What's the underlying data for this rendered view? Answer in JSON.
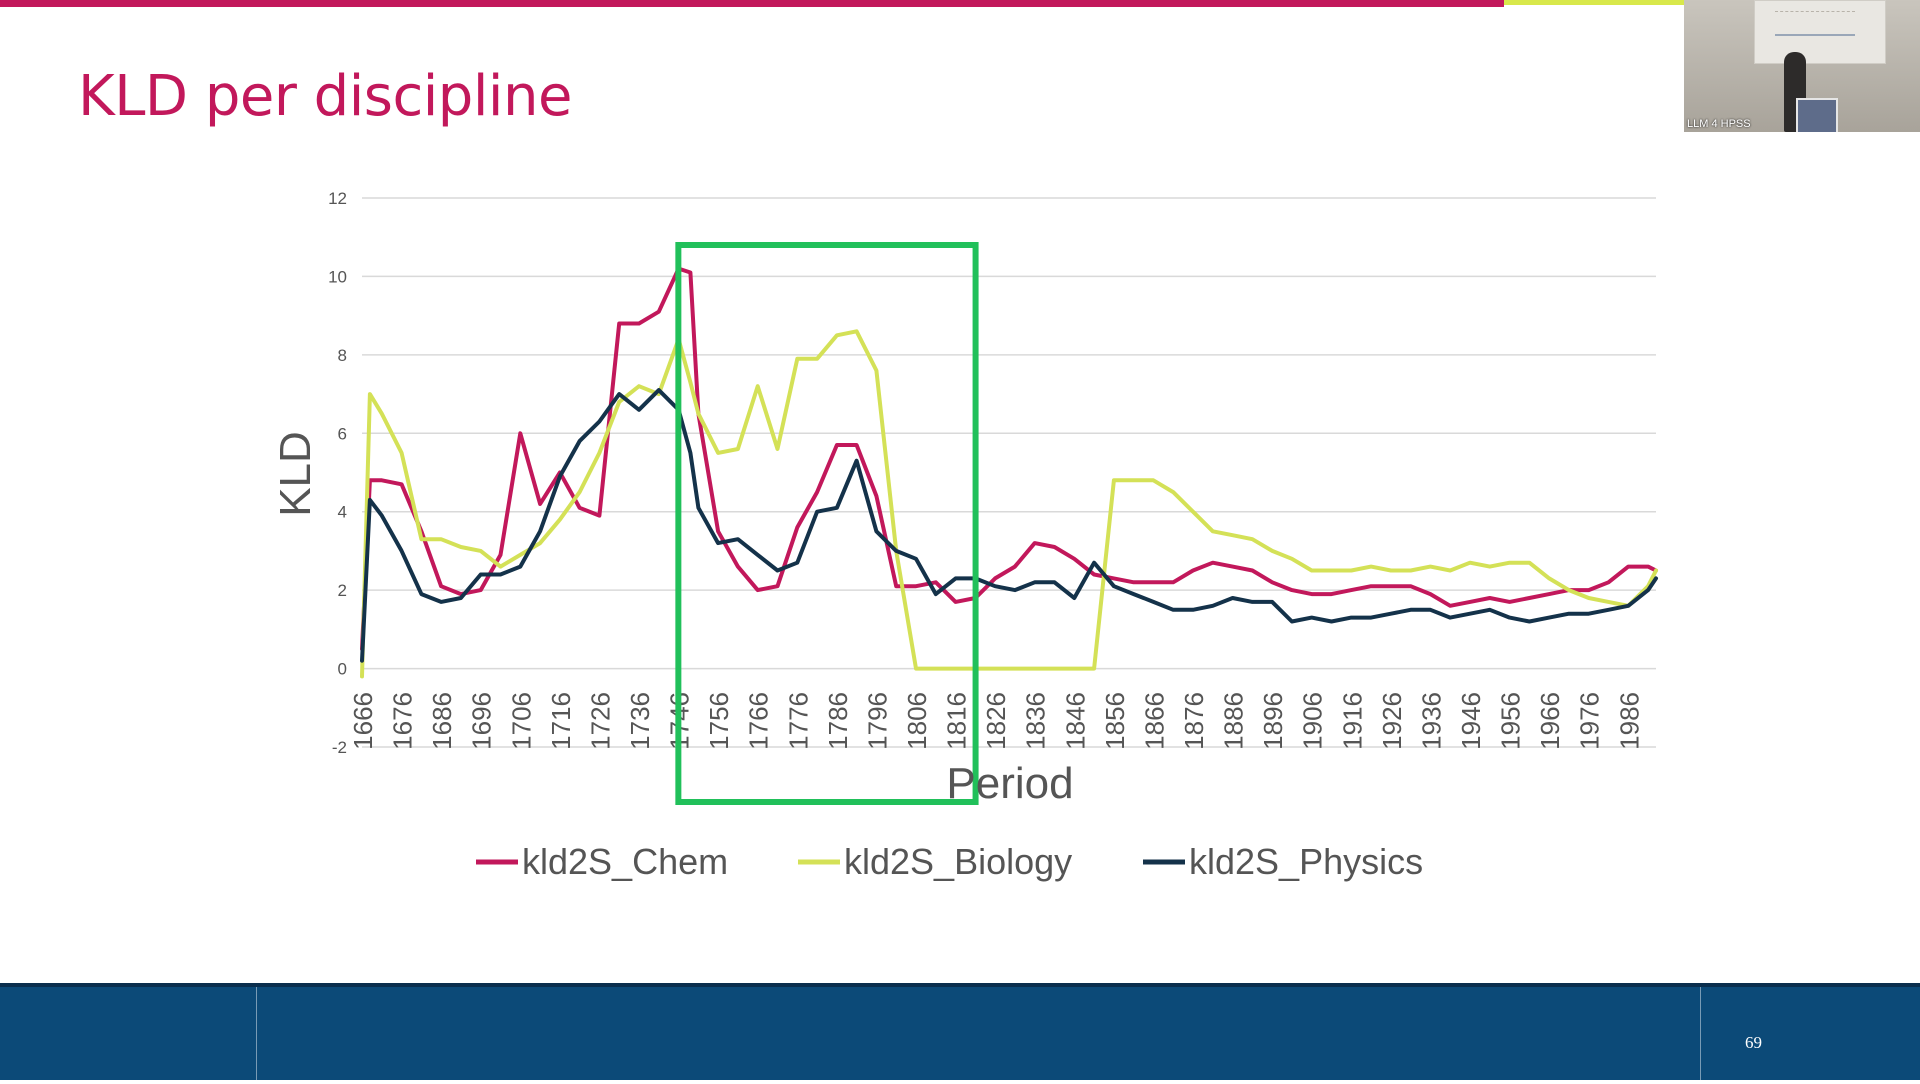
{
  "slide": {
    "title": "KLD per discipline",
    "page_number": "69",
    "accent_color": "#c2185b",
    "footer_color": "#0c4a78"
  },
  "video_thumbnail": {
    "label": "LLM 4 HPSS"
  },
  "chart_data": {
    "type": "line",
    "xlabel": "Period",
    "ylabel": "KLD",
    "ylim": [
      -2,
      12
    ],
    "yticks": [
      -2,
      0,
      2,
      4,
      6,
      8,
      10,
      12
    ],
    "grid": true,
    "legend_position": "bottom",
    "x": [
      1666,
      1668,
      1671,
      1676,
      1681,
      1686,
      1691,
      1696,
      1701,
      1706,
      1711,
      1716,
      1721,
      1726,
      1731,
      1736,
      1741,
      1746,
      1749,
      1751,
      1756,
      1761,
      1766,
      1771,
      1776,
      1781,
      1786,
      1791,
      1796,
      1801,
      1806,
      1811,
      1816,
      1821,
      1826,
      1831,
      1836,
      1841,
      1846,
      1851,
      1856,
      1861,
      1866,
      1871,
      1876,
      1881,
      1886,
      1891,
      1896,
      1901,
      1906,
      1911,
      1916,
      1921,
      1926,
      1931,
      1936,
      1941,
      1946,
      1951,
      1956,
      1961,
      1966,
      1971,
      1976,
      1981,
      1986,
      1991,
      1993
    ],
    "tick_labels": [
      "1666",
      "1676",
      "1686",
      "1696",
      "1706",
      "1716",
      "1726",
      "1736",
      "1746",
      "1756",
      "1766",
      "1776",
      "1786",
      "1796",
      "1806",
      "1816",
      "1826",
      "1836",
      "1846",
      "1856",
      "1866",
      "1876",
      "1886",
      "1896",
      "1906",
      "1916",
      "1926",
      "1936",
      "1946",
      "1956",
      "1966",
      "1976",
      "1986"
    ],
    "series": [
      {
        "name": "kld2S_Chem",
        "color": "#c2185b",
        "values": [
          0.5,
          4.8,
          4.8,
          4.7,
          3.5,
          2.1,
          1.9,
          2.0,
          2.9,
          6.0,
          4.2,
          5.0,
          4.1,
          3.9,
          8.8,
          8.8,
          9.1,
          10.2,
          10.1,
          6.5,
          3.5,
          2.6,
          2.0,
          2.1,
          3.6,
          4.5,
          5.7,
          5.7,
          4.4,
          2.1,
          2.1,
          2.2,
          1.7,
          1.8,
          2.3,
          2.6,
          3.2,
          3.1,
          2.8,
          2.4,
          2.3,
          2.2,
          2.2,
          2.2,
          2.5,
          2.7,
          2.6,
          2.5,
          2.2,
          2.0,
          1.9,
          1.9,
          2.0,
          2.1,
          2.1,
          2.1,
          1.9,
          1.6,
          1.7,
          1.8,
          1.7,
          1.8,
          1.9,
          2.0,
          2.0,
          2.2,
          2.6,
          2.6,
          2.5
        ]
      },
      {
        "name": "kld2S_Biology",
        "color": "#d4e157",
        "values": [
          -0.2,
          7.0,
          6.5,
          5.5,
          3.3,
          3.3,
          3.1,
          3.0,
          2.6,
          2.9,
          3.2,
          3.8,
          4.5,
          5.5,
          6.8,
          7.2,
          7.0,
          8.4,
          7.3,
          6.5,
          5.5,
          5.6,
          7.2,
          5.6,
          7.9,
          7.9,
          8.5,
          8.6,
          7.6,
          3.0,
          0.0,
          0.0,
          0.0,
          0.0,
          0.0,
          0.0,
          0.0,
          0.0,
          0.0,
          0.0,
          4.8,
          4.8,
          4.8,
          4.5,
          4.0,
          3.5,
          3.4,
          3.3,
          3.0,
          2.8,
          2.5,
          2.5,
          2.5,
          2.6,
          2.5,
          2.5,
          2.6,
          2.5,
          2.7,
          2.6,
          2.7,
          2.7,
          2.3,
          2.0,
          1.8,
          1.7,
          1.6,
          2.1,
          2.5
        ]
      },
      {
        "name": "kld2S_Physics",
        "color": "#14324a",
        "values": [
          0.2,
          4.3,
          3.9,
          3.0,
          1.9,
          1.7,
          1.8,
          2.4,
          2.4,
          2.6,
          3.5,
          4.9,
          5.8,
          6.3,
          7.0,
          6.6,
          7.1,
          6.6,
          5.5,
          4.1,
          3.2,
          3.3,
          2.9,
          2.5,
          2.7,
          4.0,
          4.1,
          5.3,
          3.5,
          3.0,
          2.8,
          1.9,
          2.3,
          2.3,
          2.1,
          2.0,
          2.2,
          2.2,
          1.8,
          2.7,
          2.1,
          1.9,
          1.7,
          1.5,
          1.5,
          1.6,
          1.8,
          1.7,
          1.7,
          1.2,
          1.3,
          1.2,
          1.3,
          1.3,
          1.4,
          1.5,
          1.5,
          1.3,
          1.4,
          1.5,
          1.3,
          1.2,
          1.3,
          1.4,
          1.4,
          1.5,
          1.6,
          2.0,
          2.3
        ]
      }
    ],
    "highlight": {
      "x_from": 1751,
      "x_to": 1816,
      "color": "#21c05a"
    }
  }
}
